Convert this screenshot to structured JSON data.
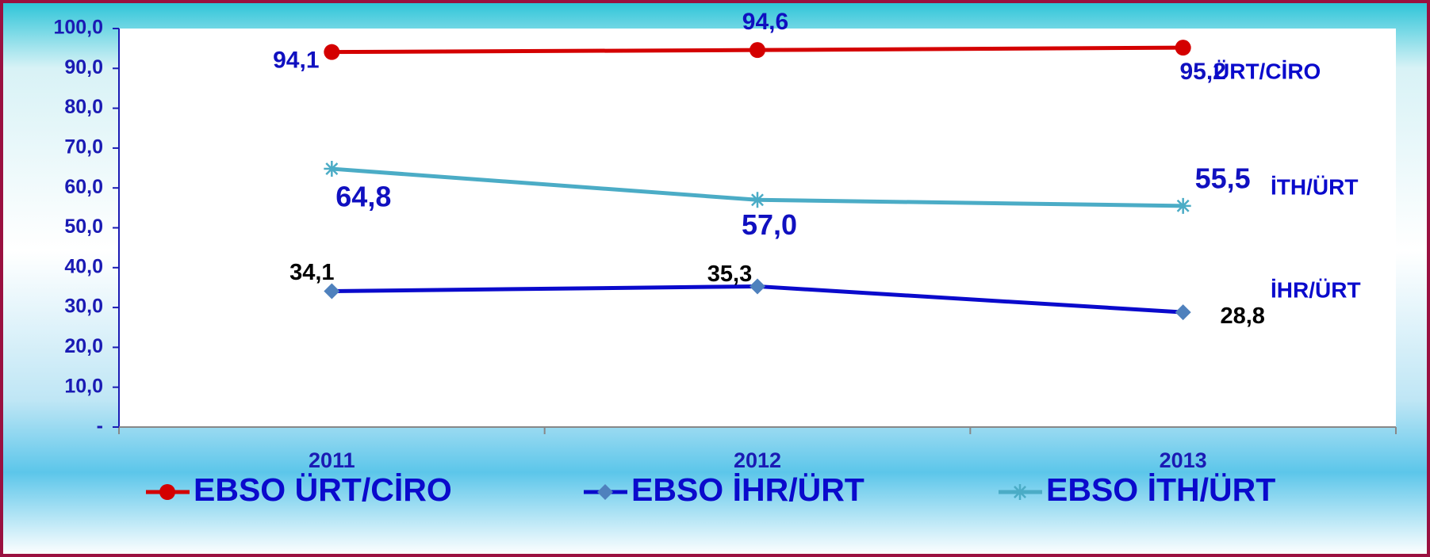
{
  "chart_data": {
    "type": "line",
    "categories": [
      "2011",
      "2012",
      "2013"
    ],
    "series": [
      {
        "name": "EBSO ÜRT/CİRO",
        "color": "#d40000",
        "marker": "circle",
        "values": [
          94.1,
          94.6,
          95.2
        ],
        "value_labels": [
          "94,1",
          "94,6",
          "95,2"
        ]
      },
      {
        "name": "EBSO İHR/ÜRT",
        "color": "#0a0acc",
        "marker": "diamond",
        "marker_color": "#4f81bd",
        "values": [
          34.1,
          35.3,
          28.8
        ],
        "value_labels": [
          "34,1",
          "35,3",
          "28,8"
        ]
      },
      {
        "name": "EBSO İTH/ÜRT",
        "color": "#4bacc6",
        "marker": "star",
        "values": [
          64.8,
          57.0,
          55.5
        ],
        "value_labels": [
          "64,8",
          "57,0",
          "55,5"
        ]
      }
    ],
    "annotations": [
      "ÜRT/CİRO",
      "İTH/ÜRT",
      "İHR/ÜRT"
    ],
    "ylim": [
      0,
      100
    ],
    "yticks": [
      {
        "value": 0,
        "label": "-"
      },
      {
        "value": 10,
        "label": "10,0"
      },
      {
        "value": 20,
        "label": "20,0"
      },
      {
        "value": 30,
        "label": "30,0"
      },
      {
        "value": 40,
        "label": "40,0"
      },
      {
        "value": 50,
        "label": "50,0"
      },
      {
        "value": 60,
        "label": "60,0"
      },
      {
        "value": 70,
        "label": "70,0"
      },
      {
        "value": 80,
        "label": "80,0"
      },
      {
        "value": 90,
        "label": "90,0"
      },
      {
        "value": 100,
        "label": "100,0"
      }
    ],
    "legend": "bottom"
  }
}
